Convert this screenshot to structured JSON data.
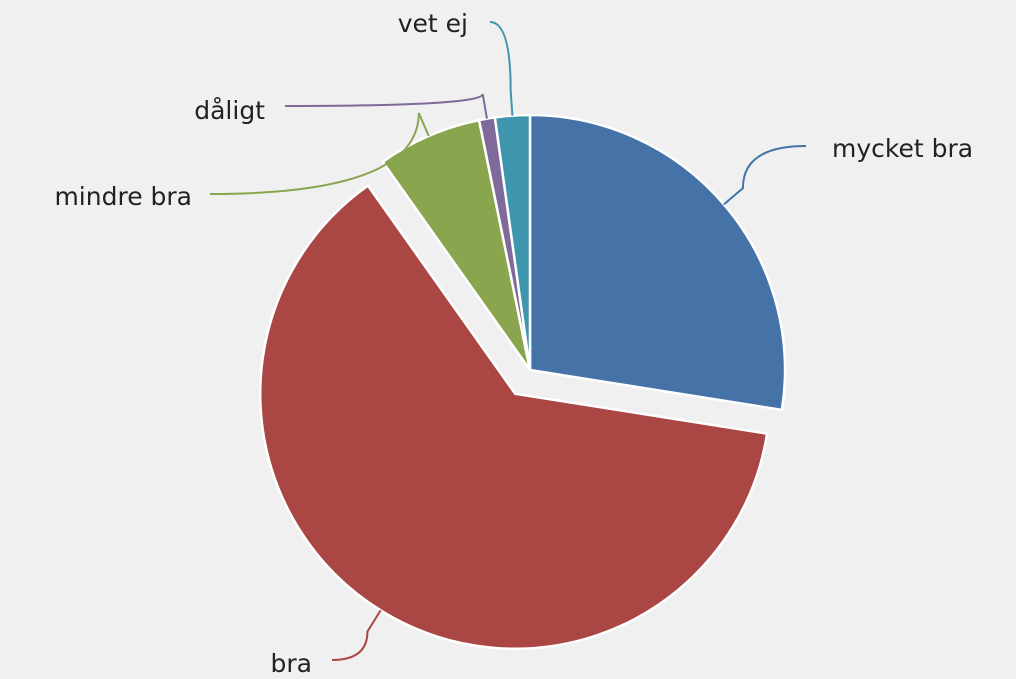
{
  "chart_data": {
    "type": "pie",
    "categories": [
      "mycket bra",
      "bra",
      "mindre bra",
      "dåligt",
      "vet ej"
    ],
    "values": [
      27.5,
      62.7,
      6.6,
      1.0,
      2.2
    ],
    "colors": [
      "#4572a7",
      "#aa4643",
      "#89a54e",
      "#80699b",
      "#3d96ae"
    ],
    "sliced": [
      false,
      true,
      false,
      false,
      false
    ]
  }
}
